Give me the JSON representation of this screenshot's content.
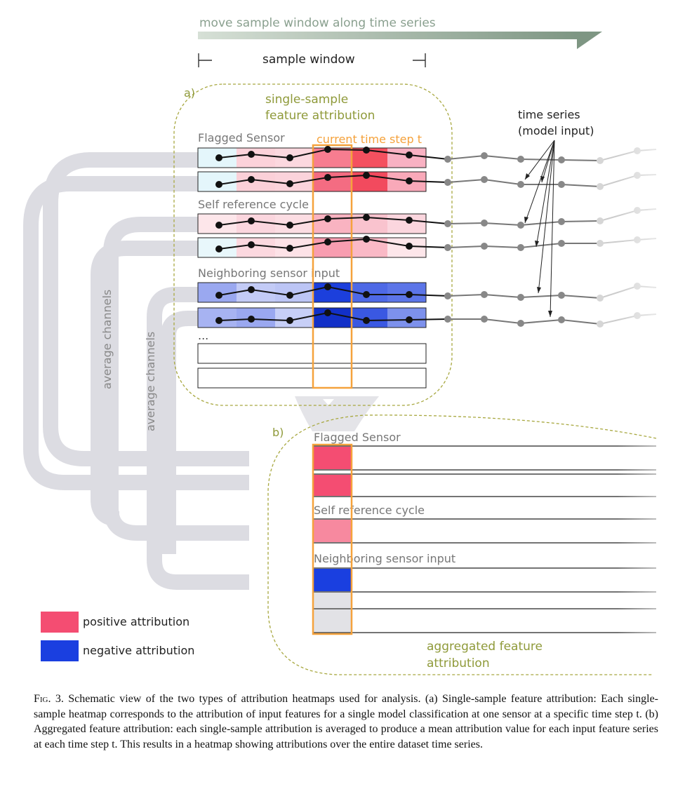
{
  "header": {
    "move_label": "move sample window along time series",
    "window_label": "sample window"
  },
  "panel_a": {
    "tag": "a)",
    "title_line1": "single-sample",
    "title_line2": "feature attribution",
    "current_step_label": "current time step t",
    "groups": [
      "Flagged Sensor",
      "Self reference cycle",
      "Neighboring sensor input"
    ],
    "ellipsis": "...",
    "time_series_line1": "time series",
    "time_series_line2": "(model input)"
  },
  "side_labels": {
    "outer": "average channels",
    "inner": "average channels"
  },
  "panel_b": {
    "tag": "b)",
    "groups": [
      "Flagged Sensor",
      "Self reference cycle",
      "Neighboring sensor input"
    ],
    "ellipsis": "...",
    "title_line1": "aggregated feature",
    "title_line2": "attribution"
  },
  "legend": {
    "positive": "positive attribution",
    "negative": "negative attribution",
    "positive_color": "#f44d72",
    "negative_color": "#1a3fe0"
  },
  "colors": {
    "arrow": "#8aa08f",
    "dashed_border": "#a8a840",
    "olive_text": "#8f9a3a",
    "highlight": "#f5a23c",
    "band": "#dcdce2"
  },
  "caption": {
    "figure_label": "Fig. 3.",
    "text": "Schematic view of the two types of attribution heatmaps used for analysis. (a) Single-sample feature attribution: Each single-sample heatmap corresponds to the attribution of input features for a single model classification at one sensor at a specific time step t. (b) Aggregated feature attribution: each single-sample attribution is averaged to produce a mean attribution value for each input feature series at each time step t. This results in a heatmap showing attributions over the entire dataset time series."
  }
}
